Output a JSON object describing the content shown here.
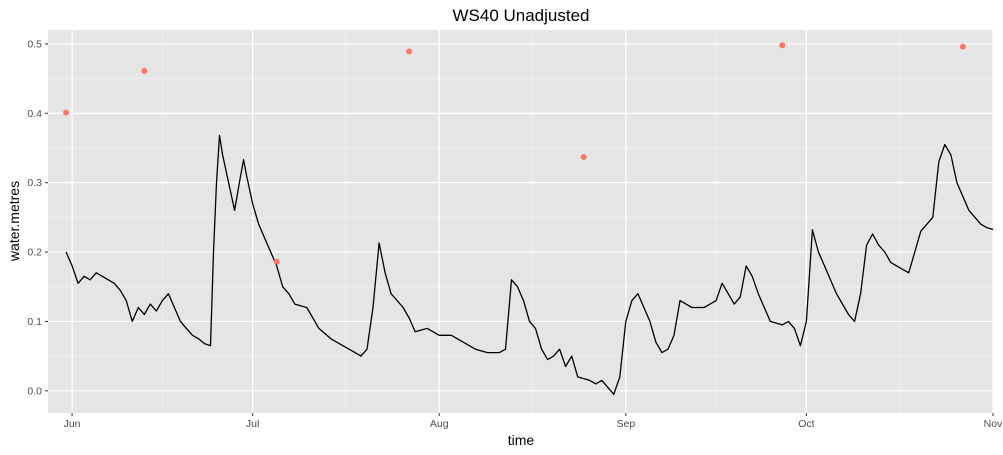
{
  "chart_data": {
    "type": "line",
    "title": "WS40 Unadjusted",
    "xlabel": "time",
    "ylabel": "water.metres",
    "x_axis": {
      "type": "date",
      "range": [
        "2017-05-28",
        "2017-11-01"
      ],
      "ticks": [
        {
          "date": "2017-06-01",
          "label": "Jun"
        },
        {
          "date": "2017-07-01",
          "label": "Jul"
        },
        {
          "date": "2017-08-01",
          "label": "Aug"
        },
        {
          "date": "2017-09-01",
          "label": "Sep"
        },
        {
          "date": "2017-10-01",
          "label": "Oct"
        },
        {
          "date": "2017-11-01",
          "label": "Nov"
        }
      ]
    },
    "y_axis": {
      "range": [
        -0.032,
        0.52
      ],
      "ticks": [
        0.0,
        0.1,
        0.2,
        0.3,
        0.4,
        0.5
      ],
      "tick_labels": [
        "0.0",
        "0.1",
        "0.2",
        "0.3",
        "0.4",
        "0.5"
      ]
    },
    "grid": true,
    "background": "#e5e5e5",
    "series": [
      {
        "kind": "line",
        "color": "#000000",
        "points": [
          [
            "2017-05-31",
            0.2
          ],
          [
            "2017-06-01",
            0.18
          ],
          [
            "2017-06-02",
            0.155
          ],
          [
            "2017-06-03",
            0.165
          ],
          [
            "2017-06-04",
            0.16
          ],
          [
            "2017-06-05",
            0.17
          ],
          [
            "2017-06-06",
            0.165
          ],
          [
            "2017-06-07",
            0.16
          ],
          [
            "2017-06-08",
            0.155
          ],
          [
            "2017-06-09",
            0.145
          ],
          [
            "2017-06-10",
            0.13
          ],
          [
            "2017-06-11",
            0.1
          ],
          [
            "2017-06-12",
            0.12
          ],
          [
            "2017-06-13",
            0.11
          ],
          [
            "2017-06-14",
            0.125
          ],
          [
            "2017-06-15",
            0.115
          ],
          [
            "2017-06-16",
            0.13
          ],
          [
            "2017-06-17",
            0.14
          ],
          [
            "2017-06-18",
            0.12
          ],
          [
            "2017-06-19",
            0.1
          ],
          [
            "2017-06-20",
            0.09
          ],
          [
            "2017-06-21",
            0.08
          ],
          [
            "2017-06-22",
            0.075
          ],
          [
            "2017-06-23",
            0.068
          ],
          [
            "2017-06-24",
            0.065
          ],
          [
            "2017-06-24T12",
            0.2
          ],
          [
            "2017-06-25",
            0.3
          ],
          [
            "2017-06-25T12",
            0.368
          ],
          [
            "2017-06-26",
            0.34
          ],
          [
            "2017-06-27",
            0.3
          ],
          [
            "2017-06-28",
            0.26
          ],
          [
            "2017-06-29",
            0.31
          ],
          [
            "2017-06-29T12",
            0.333
          ],
          [
            "2017-06-30",
            0.31
          ],
          [
            "2017-07-01",
            0.27
          ],
          [
            "2017-07-02",
            0.24
          ],
          [
            "2017-07-03",
            0.22
          ],
          [
            "2017-07-04",
            0.2
          ],
          [
            "2017-07-05",
            0.18
          ],
          [
            "2017-07-06",
            0.15
          ],
          [
            "2017-07-07",
            0.14
          ],
          [
            "2017-07-08",
            0.125
          ],
          [
            "2017-07-10",
            0.12
          ],
          [
            "2017-07-12",
            0.09
          ],
          [
            "2017-07-14",
            0.075
          ],
          [
            "2017-07-16",
            0.065
          ],
          [
            "2017-07-18",
            0.055
          ],
          [
            "2017-07-19",
            0.05
          ],
          [
            "2017-07-20",
            0.06
          ],
          [
            "2017-07-21",
            0.12
          ],
          [
            "2017-07-22",
            0.213
          ],
          [
            "2017-07-23",
            0.17
          ],
          [
            "2017-07-24",
            0.14
          ],
          [
            "2017-07-26",
            0.12
          ],
          [
            "2017-07-27",
            0.105
          ],
          [
            "2017-07-28",
            0.085
          ],
          [
            "2017-07-30",
            0.09
          ],
          [
            "2017-08-01",
            0.08
          ],
          [
            "2017-08-03",
            0.08
          ],
          [
            "2017-08-05",
            0.07
          ],
          [
            "2017-08-07",
            0.06
          ],
          [
            "2017-08-09",
            0.055
          ],
          [
            "2017-08-11",
            0.055
          ],
          [
            "2017-08-12",
            0.06
          ],
          [
            "2017-08-13",
            0.16
          ],
          [
            "2017-08-14",
            0.15
          ],
          [
            "2017-08-15",
            0.13
          ],
          [
            "2017-08-16",
            0.1
          ],
          [
            "2017-08-17",
            0.09
          ],
          [
            "2017-08-18",
            0.06
          ],
          [
            "2017-08-19",
            0.045
          ],
          [
            "2017-08-20",
            0.05
          ],
          [
            "2017-08-21",
            0.06
          ],
          [
            "2017-08-22",
            0.035
          ],
          [
            "2017-08-23",
            0.05
          ],
          [
            "2017-08-24",
            0.02
          ],
          [
            "2017-08-26",
            0.015
          ],
          [
            "2017-08-27",
            0.01
          ],
          [
            "2017-08-28",
            0.015
          ],
          [
            "2017-08-29",
            0.005
          ],
          [
            "2017-08-30",
            -0.005
          ],
          [
            "2017-08-31",
            0.02
          ],
          [
            "2017-09-01",
            0.1
          ],
          [
            "2017-09-02",
            0.13
          ],
          [
            "2017-09-03",
            0.14
          ],
          [
            "2017-09-04",
            0.12
          ],
          [
            "2017-09-05",
            0.1
          ],
          [
            "2017-09-06",
            0.07
          ],
          [
            "2017-09-07",
            0.055
          ],
          [
            "2017-09-08",
            0.06
          ],
          [
            "2017-09-09",
            0.08
          ],
          [
            "2017-09-10",
            0.13
          ],
          [
            "2017-09-11",
            0.125
          ],
          [
            "2017-09-12",
            0.12
          ],
          [
            "2017-09-14",
            0.12
          ],
          [
            "2017-09-15",
            0.125
          ],
          [
            "2017-09-16",
            0.13
          ],
          [
            "2017-09-17",
            0.155
          ],
          [
            "2017-09-18",
            0.14
          ],
          [
            "2017-09-19",
            0.125
          ],
          [
            "2017-09-20",
            0.135
          ],
          [
            "2017-09-21",
            0.18
          ],
          [
            "2017-09-22",
            0.165
          ],
          [
            "2017-09-23",
            0.14
          ],
          [
            "2017-09-24",
            0.12
          ],
          [
            "2017-09-25",
            0.1
          ],
          [
            "2017-09-27",
            0.095
          ],
          [
            "2017-09-28",
            0.1
          ],
          [
            "2017-09-29",
            0.09
          ],
          [
            "2017-09-30",
            0.065
          ],
          [
            "2017-10-01",
            0.1
          ],
          [
            "2017-10-02",
            0.232
          ],
          [
            "2017-10-03",
            0.2
          ],
          [
            "2017-10-04",
            0.18
          ],
          [
            "2017-10-06",
            0.14
          ],
          [
            "2017-10-08",
            0.11
          ],
          [
            "2017-10-09",
            0.1
          ],
          [
            "2017-10-10",
            0.14
          ],
          [
            "2017-10-11",
            0.21
          ],
          [
            "2017-10-12",
            0.226
          ],
          [
            "2017-10-13",
            0.21
          ],
          [
            "2017-10-14",
            0.2
          ],
          [
            "2017-10-15",
            0.185
          ],
          [
            "2017-10-16",
            0.18
          ],
          [
            "2017-10-17",
            0.175
          ],
          [
            "2017-10-18",
            0.17
          ],
          [
            "2017-10-19",
            0.2
          ],
          [
            "2017-10-20",
            0.23
          ],
          [
            "2017-10-21",
            0.24
          ],
          [
            "2017-10-22",
            0.25
          ],
          [
            "2017-10-23",
            0.33
          ],
          [
            "2017-10-24",
            0.355
          ],
          [
            "2017-10-25",
            0.34
          ],
          [
            "2017-10-26",
            0.3
          ],
          [
            "2017-10-27",
            0.28
          ],
          [
            "2017-10-28",
            0.26
          ],
          [
            "2017-10-29",
            0.25
          ],
          [
            "2017-10-30",
            0.24
          ],
          [
            "2017-10-31",
            0.235
          ],
          [
            "2017-11-02",
            0.23
          ],
          [
            "2017-11-04",
            0.215
          ]
        ]
      },
      {
        "kind": "points",
        "color": "#f8766d",
        "points": [
          [
            "2017-05-31",
            0.401
          ],
          [
            "2017-06-13",
            0.461
          ],
          [
            "2017-07-05",
            0.186
          ],
          [
            "2017-07-27",
            0.489
          ],
          [
            "2017-08-25",
            0.337
          ],
          [
            "2017-09-27",
            0.498
          ],
          [
            "2017-10-27",
            0.496
          ]
        ]
      }
    ]
  }
}
